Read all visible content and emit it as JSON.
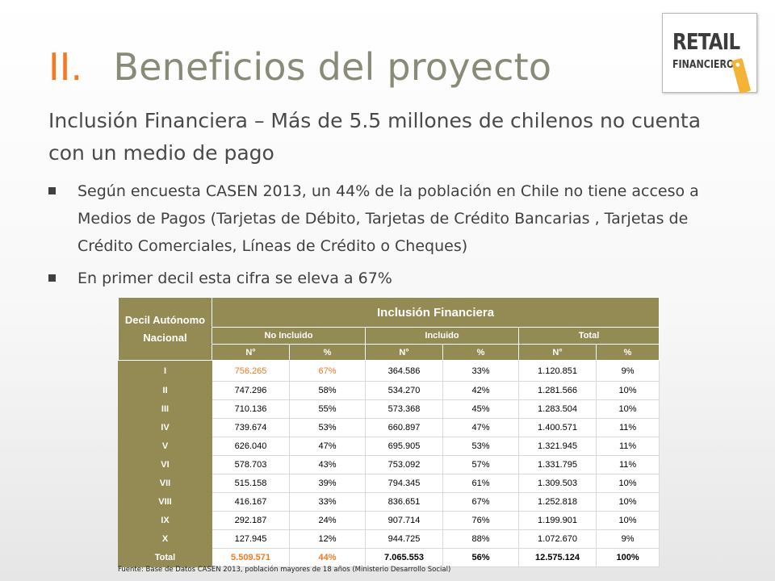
{
  "slide": {
    "title_number": "II.",
    "title_text": "Beneficios del proyecto",
    "subtitle": "Inclusión Financiera – Más de 5.5 millones de chilenos no cuenta con un medio de pago",
    "bullets": [
      "Según encuesta CASEN 2013, un 44% de la población en Chile no tiene acceso a Medios de Pagos (Tarjetas de Débito, Tarjetas de Crédito Bancarias , Tarjetas de Crédito Comerciales, Líneas de Crédito o Cheques)",
      "En primer decil esta cifra se eleva a 67%"
    ],
    "source": "Fuente: Base de Datos CASEN 2013, población mayores de 18 años (Ministerio Desarrollo Social)"
  },
  "logo": {
    "line1": "RETAIL",
    "line2": "FINANCIERO"
  },
  "table": {
    "corner_header": "Decil Autónomo Nacional",
    "main_header": "Inclusión Financiera",
    "groups": [
      "No Incluido",
      "Incluido",
      "Total"
    ],
    "subheaders": [
      "N°",
      "%",
      "N°",
      "%",
      "N°",
      "%"
    ],
    "rows": [
      {
        "decil": "I",
        "cells": [
          "756.265",
          "67%",
          "364.586",
          "33%",
          "1.120.851",
          "9%"
        ]
      },
      {
        "decil": "II",
        "cells": [
          "747.296",
          "58%",
          "534.270",
          "42%",
          "1.281.566",
          "10%"
        ]
      },
      {
        "decil": "III",
        "cells": [
          "710.136",
          "55%",
          "573.368",
          "45%",
          "1.283.504",
          "10%"
        ]
      },
      {
        "decil": "IV",
        "cells": [
          "739.674",
          "53%",
          "660.897",
          "47%",
          "1.400.571",
          "11%"
        ]
      },
      {
        "decil": "V",
        "cells": [
          "626.040",
          "47%",
          "695.905",
          "53%",
          "1.321.945",
          "11%"
        ]
      },
      {
        "decil": "VI",
        "cells": [
          "578.703",
          "43%",
          "753.092",
          "57%",
          "1.331.795",
          "11%"
        ]
      },
      {
        "decil": "VII",
        "cells": [
          "515.158",
          "39%",
          "794.345",
          "61%",
          "1.309.503",
          "10%"
        ]
      },
      {
        "decil": "VIII",
        "cells": [
          "416.167",
          "33%",
          "836.651",
          "67%",
          "1.252.818",
          "10%"
        ]
      },
      {
        "decil": "IX",
        "cells": [
          "292.187",
          "24%",
          "907.714",
          "76%",
          "1.199.901",
          "10%"
        ]
      },
      {
        "decil": "X",
        "cells": [
          "127.945",
          "12%",
          "944.725",
          "88%",
          "1.072.670",
          "9%"
        ]
      },
      {
        "decil": "Total",
        "cells": [
          "5.509.571",
          "44%",
          "7.065.553",
          "56%",
          "12.575.124",
          "100%"
        ]
      }
    ]
  },
  "colors": {
    "accent_orange": "#f47a20",
    "header_olive": "#948a54",
    "title_gray": "#8a8a78"
  }
}
